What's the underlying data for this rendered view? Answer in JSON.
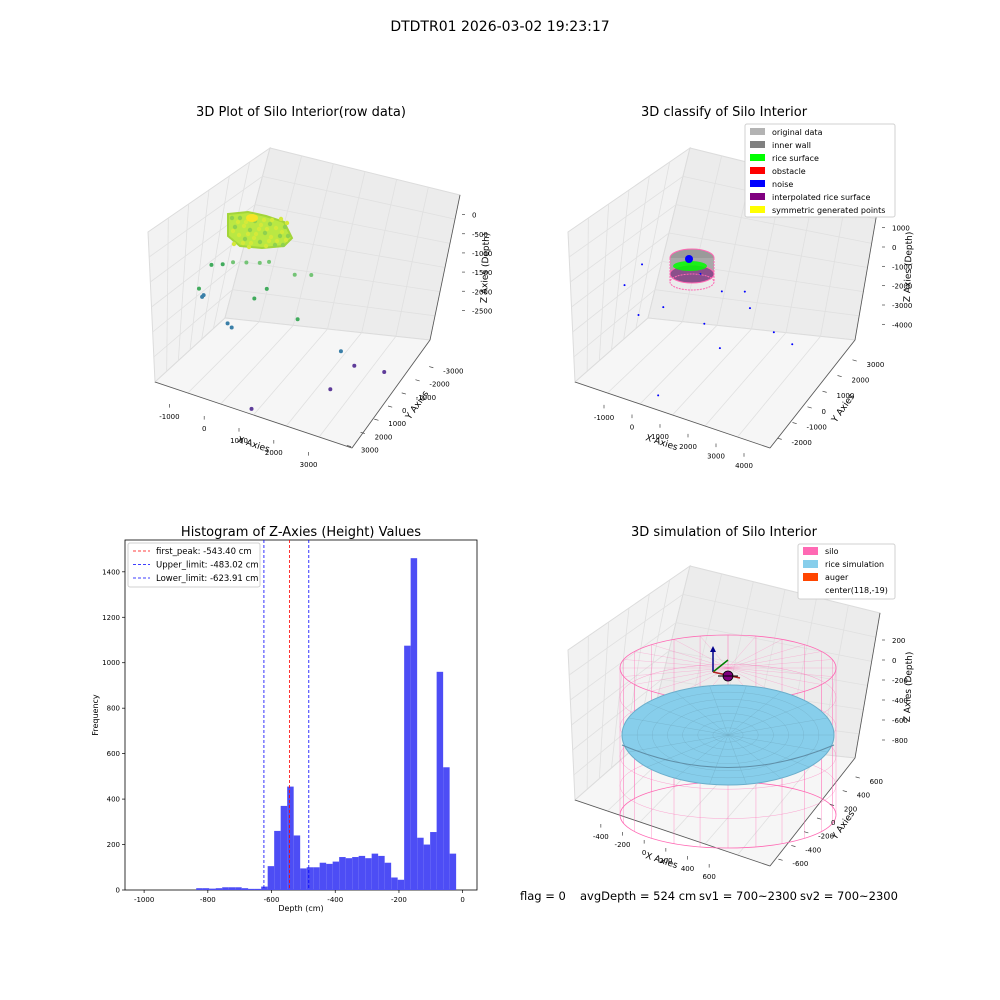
{
  "figure": {
    "suptitle": "DTDTR01 2026-03-02 19:23:17",
    "footer": {
      "flag": "flag = 0",
      "avg_depth": "avgDepth = 524 cm",
      "sv1": "sv1 = 700~2300",
      "sv2": "sv2 = 700~2300"
    }
  },
  "colors": {
    "original_data": "#b3b3b3",
    "inner_wall": "#808080",
    "rice_surface": "#00ff00",
    "obstacle": "#ff0000",
    "noise": "#0000ff",
    "interpolated_rice_surface": "#800080",
    "symmetric_generated_points": "#ffff00",
    "silo": "#ff69b4",
    "rice_simulation": "#87ceeb",
    "auger": "#ff4500",
    "hist_bar": "#4d4df5"
  },
  "chart_data": [
    {
      "type": "scatter",
      "projection": "3d",
      "title": "3D Plot of Silo Interior(row data)",
      "xlabel": "X Axies",
      "ylabel": "Y Axies",
      "zlabel": "Z Axies (Depth)",
      "x_ticks": [
        "-1000",
        "0",
        "1000",
        "2000",
        "3000"
      ],
      "y_ticks": [
        "-3000",
        "-2000",
        "-1000",
        "0",
        "1000",
        "2000",
        "3000"
      ],
      "z_ticks": [
        "0",
        "-500",
        "-1000",
        "-1500",
        "-2000",
        "-2500"
      ],
      "xlim": [
        -1300,
        3500
      ],
      "ylim": [
        -3300,
        3300
      ],
      "zlim": [
        -2900,
        100
      ],
      "points": [
        {
          "x": -900,
          "y": -700,
          "z": -1600
        },
        {
          "x": -850,
          "y": -600,
          "z": -1750
        },
        {
          "x": -800,
          "y": -650,
          "z": -1700
        },
        {
          "x": -700,
          "y": -300,
          "z": -1200
        },
        {
          "x": -400,
          "y": -400,
          "z": -1100
        },
        {
          "x": -200,
          "y": -200,
          "z": -1050
        },
        {
          "x": 100,
          "y": -100,
          "z": -1000
        },
        {
          "x": 400,
          "y": 0,
          "z": -950
        },
        {
          "x": 600,
          "y": 100,
          "z": -900
        },
        {
          "x": 1200,
          "y": 200,
          "z": -1000
        },
        {
          "x": 1500,
          "y": 600,
          "z": -1000
        },
        {
          "x": 700,
          "y": -500,
          "z": -1250
        },
        {
          "x": 500,
          "y": -900,
          "z": -1400
        },
        {
          "x": -100,
          "y": -1100,
          "z": -1950
        },
        {
          "x": 0,
          "y": -1100,
          "z": -2000
        },
        {
          "x": 1400,
          "y": -300,
          "z": -1650
        },
        {
          "x": 2300,
          "y": 300,
          "z": -2100
        },
        {
          "x": 2600,
          "y": 400,
          "z": -2300
        },
        {
          "x": 3200,
          "y": 900,
          "z": -2350
        },
        {
          "x": 2300,
          "y": -700,
          "z": -2600
        },
        {
          "x": 1000,
          "y": -3100,
          "z": -2850
        }
      ]
    },
    {
      "type": "scatter",
      "projection": "3d",
      "title": "3D classify of Silo Interior",
      "xlabel": "X Axies",
      "ylabel": "Y Axies",
      "zlabel": "Z Axies (Depth)",
      "x_ticks": [
        "-1000",
        "0",
        "1000",
        "2000",
        "3000",
        "4000"
      ],
      "y_ticks": [
        "-2000",
        "-1000",
        "0",
        "1000",
        "2000",
        "3000"
      ],
      "z_ticks": [
        "1000",
        "0",
        "-1000",
        "-2000",
        "-3000",
        "-4000"
      ],
      "xlim": [
        -1500,
        4300
      ],
      "ylim": [
        -2500,
        3400
      ],
      "zlim": [
        -4600,
        1200
      ],
      "legend": [
        {
          "label": "original data",
          "color": "#b3b3b3"
        },
        {
          "label": "inner wall",
          "color": "#808080"
        },
        {
          "label": "rice surface",
          "color": "#00ff00"
        },
        {
          "label": "obstacle",
          "color": "#ff0000"
        },
        {
          "label": "noise",
          "color": "#0000ff"
        },
        {
          "label": "interpolated rice surface",
          "color": "#800080"
        },
        {
          "label": "symmetric generated points",
          "color": "#ffff00"
        }
      ],
      "noise_points": [
        {
          "x": 1200,
          "y": 300,
          "z": -900
        },
        {
          "x": 1800,
          "y": 400,
          "z": -1300
        },
        {
          "x": 2300,
          "y": 900,
          "z": -1300
        },
        {
          "x": 2600,
          "y": 500,
          "z": -1600
        },
        {
          "x": 3200,
          "y": 800,
          "z": -2300
        },
        {
          "x": 3600,
          "y": 1200,
          "z": -2700
        },
        {
          "x": 1500,
          "y": -200,
          "z": -2300
        },
        {
          "x": 500,
          "y": -800,
          "z": -1900
        },
        {
          "x": -200,
          "y": -900,
          "z": -2400
        },
        {
          "x": -800,
          "y": -400,
          "z": -1800
        },
        {
          "x": -500,
          "y": 200,
          "z": -1200
        },
        {
          "x": 900,
          "y": -2300,
          "z": -4200
        },
        {
          "x": 2000,
          "y": -300,
          "z": -2900
        }
      ]
    },
    {
      "type": "bar",
      "title": "Histogram of Z-Axies (Height) Values",
      "xlabel": "Depth (cm)",
      "ylabel": "Frequency",
      "xlim": [
        -1060,
        45
      ],
      "ylim": [
        0,
        1540
      ],
      "x_ticks": [
        -1000,
        -800,
        -600,
        -400,
        -200,
        0
      ],
      "y_ticks": [
        0,
        200,
        400,
        600,
        800,
        1000,
        1200,
        1400
      ],
      "bin_width": 20.4,
      "bin_start": -836.5,
      "values": [
        8,
        8,
        6,
        8,
        12,
        12,
        12,
        8,
        5,
        5,
        15,
        105,
        260,
        370,
        455,
        240,
        95,
        100,
        100,
        120,
        115,
        125,
        145,
        140,
        145,
        150,
        140,
        160,
        150,
        120,
        55,
        45,
        1075,
        1460,
        230,
        200,
        255,
        960,
        540,
        160
      ],
      "reference_lines": [
        {
          "label": "first_peak: -543.40 cm",
          "x": -543.4,
          "color": "#ff0000"
        },
        {
          "label": "Upper_limit: -483.02 cm",
          "x": -483.02,
          "color": "#0000ff"
        },
        {
          "label": "Lower_limit: -623.91 cm",
          "x": -623.91,
          "color": "#0000ff"
        }
      ]
    },
    {
      "type": "scatter",
      "projection": "3d",
      "title": "3D simulation of Silo Interior",
      "xlabel": "X Axies",
      "ylabel": "Y Axies",
      "zlabel": "Z Axies (Depth)",
      "x_ticks": [
        "-400",
        "-200",
        "0",
        "200",
        "400",
        "600"
      ],
      "y_ticks": [
        "-600",
        "-400",
        "-200",
        "0",
        "200",
        "400",
        "600"
      ],
      "z_ticks": [
        "200",
        "0",
        "-200",
        "-400",
        "-600",
        "-800"
      ],
      "xlim": [
        -500,
        700
      ],
      "ylim": [
        -700,
        700
      ],
      "zlim": [
        -1000,
        300
      ],
      "legend": [
        {
          "label": "silo",
          "color": "#ff69b4"
        },
        {
          "label": "rice simulation",
          "color": "#87ceeb"
        },
        {
          "label": "auger",
          "color": "#ff4500"
        },
        {
          "label": "center(118,-19)",
          "color": ""
        }
      ]
    }
  ]
}
